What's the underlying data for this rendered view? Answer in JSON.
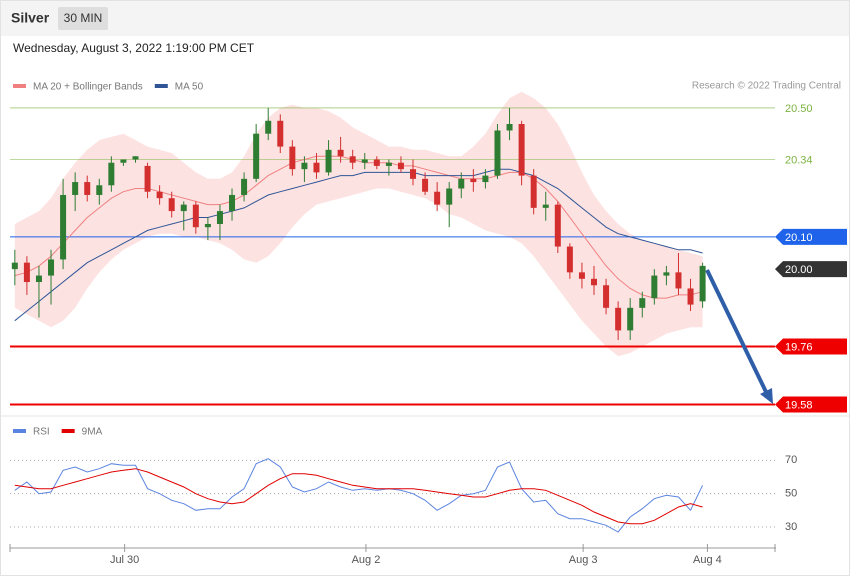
{
  "header": {
    "title": "Silver",
    "interval": "30 MIN",
    "timestamp": "Wednesday, August 3, 2022 1:19:00 PM CET"
  },
  "chart_data": [
    {
      "type": "candlestick",
      "credit": "Research © 2022 Trading Central",
      "up_color": "#2e7d32",
      "down_color": "#d32f2f",
      "band_color": "#fde2e2",
      "xlim": [
        -0.4,
        63
      ],
      "ylim": [
        19.56,
        20.54
      ],
      "xticks": [
        {
          "value": 9.1,
          "label": "Jul 30"
        },
        {
          "value": 29.1,
          "label": "Aug 2"
        },
        {
          "value": 47.1,
          "label": "Aug 3"
        },
        {
          "value": 57.4,
          "label": "Aug 4"
        }
      ],
      "x": [
        0,
        1,
        2,
        3,
        4,
        5,
        6,
        7,
        8,
        9,
        10,
        11,
        12,
        13,
        14,
        15,
        16,
        17,
        18,
        19,
        20,
        21,
        22,
        23,
        24,
        25,
        26,
        27,
        28,
        29,
        30,
        31,
        32,
        33,
        34,
        35,
        36,
        37,
        38,
        39,
        40,
        41,
        42,
        43,
        44,
        45,
        46,
        47,
        48,
        49,
        50,
        51,
        52,
        53,
        54,
        55,
        56,
        57
      ],
      "open": [
        20.0,
        20.02,
        19.96,
        19.98,
        20.03,
        20.23,
        20.27,
        20.23,
        20.26,
        20.33,
        20.34,
        20.32,
        20.24,
        20.22,
        20.18,
        20.2,
        20.13,
        20.14,
        20.18,
        20.23,
        20.28,
        20.42,
        20.46,
        20.38,
        20.31,
        20.33,
        20.3,
        20.37,
        20.35,
        20.33,
        20.34,
        20.32,
        20.33,
        20.31,
        20.28,
        20.24,
        20.2,
        20.25,
        20.28,
        20.27,
        20.29,
        20.43,
        20.45,
        20.29,
        20.19,
        20.2,
        20.07,
        19.99,
        19.97,
        19.95,
        19.88,
        19.81,
        19.88,
        19.91,
        19.98,
        19.99,
        19.94,
        19.9
      ],
      "high": [
        20.06,
        20.04,
        20.01,
        20.06,
        20.28,
        20.3,
        20.29,
        20.28,
        20.35,
        20.34,
        20.35,
        20.33,
        20.26,
        20.24,
        20.21,
        20.21,
        20.16,
        20.2,
        20.25,
        20.3,
        20.45,
        20.5,
        20.48,
        20.4,
        20.35,
        20.36,
        20.4,
        20.41,
        20.37,
        20.36,
        20.35,
        20.34,
        20.35,
        20.34,
        20.3,
        20.27,
        20.27,
        20.3,
        20.31,
        20.31,
        20.45,
        20.5,
        20.46,
        20.31,
        20.24,
        20.21,
        20.08,
        20.02,
        20.01,
        19.97,
        19.9,
        19.91,
        19.93,
        20.0,
        20.01,
        20.05,
        19.97,
        20.02
      ],
      "low": [
        19.95,
        19.92,
        19.85,
        19.89,
        20.0,
        20.18,
        20.21,
        20.2,
        20.24,
        20.32,
        20.33,
        20.22,
        20.2,
        20.16,
        20.12,
        20.11,
        20.09,
        20.09,
        20.15,
        20.21,
        20.27,
        20.4,
        20.36,
        20.29,
        20.27,
        20.28,
        20.29,
        20.33,
        20.31,
        20.31,
        20.31,
        20.29,
        20.3,
        20.26,
        20.23,
        20.18,
        20.13,
        20.22,
        20.24,
        20.25,
        20.28,
        20.4,
        20.26,
        20.17,
        20.15,
        20.05,
        19.97,
        19.94,
        19.92,
        19.86,
        19.78,
        19.78,
        19.85,
        19.89,
        19.95,
        19.92,
        19.87,
        19.88
      ],
      "close": [
        20.02,
        19.96,
        19.98,
        20.03,
        20.23,
        20.27,
        20.23,
        20.26,
        20.33,
        20.34,
        20.35,
        20.24,
        20.22,
        20.18,
        20.2,
        20.13,
        20.14,
        20.18,
        20.23,
        20.28,
        20.42,
        20.46,
        20.38,
        20.31,
        20.33,
        20.3,
        20.37,
        20.35,
        20.33,
        20.34,
        20.32,
        20.33,
        20.31,
        20.28,
        20.24,
        20.2,
        20.25,
        20.28,
        20.27,
        20.29,
        20.43,
        20.45,
        20.29,
        20.19,
        20.2,
        20.07,
        19.99,
        19.97,
        19.95,
        19.88,
        19.81,
        19.88,
        19.91,
        19.98,
        19.99,
        19.94,
        19.89,
        20.01
      ],
      "series": [
        {
          "name": "MA 20 + Bollinger Bands",
          "color": "#f08080",
          "values": [
            19.98,
            19.99,
            20.01,
            20.04,
            20.08,
            20.12,
            20.16,
            20.19,
            20.22,
            20.24,
            20.25,
            20.25,
            20.24,
            20.23,
            20.22,
            20.21,
            20.2,
            20.2,
            20.21,
            20.23,
            20.26,
            20.29,
            20.31,
            20.33,
            20.34,
            20.35,
            20.35,
            20.35,
            20.34,
            20.33,
            20.33,
            20.33,
            20.32,
            20.32,
            20.31,
            20.3,
            20.29,
            20.28,
            20.28,
            20.28,
            20.29,
            20.3,
            20.3,
            20.28,
            20.25,
            20.21,
            20.16,
            20.11,
            20.06,
            20.01,
            19.97,
            19.94,
            19.92,
            19.91,
            19.91,
            19.92,
            19.92,
            19.93
          ],
          "upper": [
            20.14,
            20.16,
            20.18,
            20.22,
            20.28,
            20.33,
            20.37,
            20.4,
            20.41,
            20.42,
            20.4,
            20.38,
            20.37,
            20.36,
            20.33,
            20.3,
            20.28,
            20.28,
            20.3,
            20.35,
            20.42,
            20.47,
            20.5,
            20.51,
            20.5,
            20.5,
            20.49,
            20.47,
            20.44,
            20.42,
            20.4,
            20.38,
            20.38,
            20.37,
            20.37,
            20.36,
            20.35,
            20.35,
            20.38,
            20.42,
            20.48,
            20.53,
            20.55,
            20.53,
            20.5,
            20.45,
            20.38,
            20.3,
            20.23,
            20.18,
            20.14,
            20.11,
            20.09,
            20.08,
            20.07,
            20.06,
            20.05,
            20.04
          ],
          "lower": [
            19.88,
            19.86,
            19.84,
            19.82,
            19.84,
            19.88,
            19.94,
            19.99,
            20.03,
            20.06,
            20.08,
            20.1,
            20.11,
            20.11,
            20.1,
            20.1,
            20.09,
            20.08,
            20.06,
            20.03,
            20.02,
            20.04,
            20.08,
            20.13,
            20.17,
            20.2,
            20.21,
            20.22,
            20.23,
            20.24,
            20.25,
            20.25,
            20.24,
            20.23,
            20.22,
            20.2,
            20.17,
            20.16,
            20.14,
            20.12,
            20.11,
            20.1,
            20.08,
            20.04,
            19.99,
            19.94,
            19.89,
            19.84,
            19.8,
            19.76,
            19.73,
            19.74,
            19.76,
            19.78,
            19.8,
            19.81,
            19.82,
            19.82
          ]
        },
        {
          "name": "MA 50",
          "color": "#2f5597",
          "values": [
            19.84,
            19.87,
            19.9,
            19.93,
            19.96,
            19.99,
            20.02,
            20.04,
            20.06,
            20.08,
            20.1,
            20.12,
            20.13,
            20.14,
            20.15,
            20.16,
            20.16,
            20.17,
            20.18,
            20.19,
            20.21,
            20.23,
            20.24,
            20.25,
            20.26,
            20.27,
            20.28,
            20.29,
            20.29,
            20.3,
            20.3,
            20.3,
            20.3,
            20.3,
            20.29,
            20.29,
            20.29,
            20.29,
            20.29,
            20.3,
            20.31,
            20.31,
            20.3,
            20.29,
            20.27,
            20.25,
            20.22,
            20.19,
            20.16,
            20.13,
            20.11,
            20.1,
            20.09,
            20.08,
            20.07,
            20.06,
            20.06,
            20.05
          ]
        }
      ],
      "levels": [
        {
          "value": 20.5,
          "label": "20.50",
          "color": "#7cb342",
          "line_width": 0.6,
          "boxed": false
        },
        {
          "value": 20.34,
          "label": "20.34",
          "color": "#7cb342",
          "line_width": 0.6,
          "boxed": false
        },
        {
          "value": 20.1,
          "label": "20.10",
          "color": "#1e63e9",
          "line_width": 1,
          "boxed": true
        },
        {
          "value": 20.0,
          "label": "20.00",
          "color": "#333333",
          "line_width": 0,
          "boxed": true
        },
        {
          "value": 19.76,
          "label": "19.76",
          "color": "#ee0000",
          "line_width": 2,
          "boxed": true
        },
        {
          "value": 19.58,
          "label": "19.58",
          "color": "#ee0000",
          "line_width": 2,
          "boxed": true
        }
      ]
    },
    {
      "type": "line",
      "ylim": [
        18,
        81
      ],
      "yticks": [
        30,
        50,
        70
      ],
      "series": [
        {
          "name": "RSI",
          "color": "#5b84e0",
          "values": [
            52,
            57,
            50,
            51,
            64,
            66,
            63,
            65,
            68,
            67,
            67,
            53,
            50,
            46,
            44,
            40,
            41,
            41,
            48,
            53,
            68,
            71,
            66,
            54,
            51,
            53,
            57,
            54,
            52,
            53,
            52,
            53,
            52,
            50,
            46,
            40,
            44,
            49,
            50,
            52,
            66,
            69,
            53,
            45,
            46,
            38,
            35,
            35,
            33,
            31,
            27,
            36,
            41,
            47,
            49,
            48,
            40,
            55
          ]
        },
        {
          "name": "9MA",
          "color": "#e00000",
          "values": [
            55,
            54,
            53,
            53,
            55,
            57,
            59,
            61,
            63,
            64,
            65,
            63,
            60,
            57,
            54,
            50,
            47,
            45,
            44,
            45,
            50,
            55,
            59,
            62,
            62,
            61,
            59,
            57,
            55,
            54,
            53,
            53,
            53,
            53,
            52,
            51,
            50,
            49,
            48,
            48,
            50,
            52,
            53,
            53,
            52,
            49,
            46,
            43,
            39,
            36,
            33,
            32,
            32,
            34,
            38,
            42,
            44,
            42
          ]
        }
      ]
    }
  ]
}
